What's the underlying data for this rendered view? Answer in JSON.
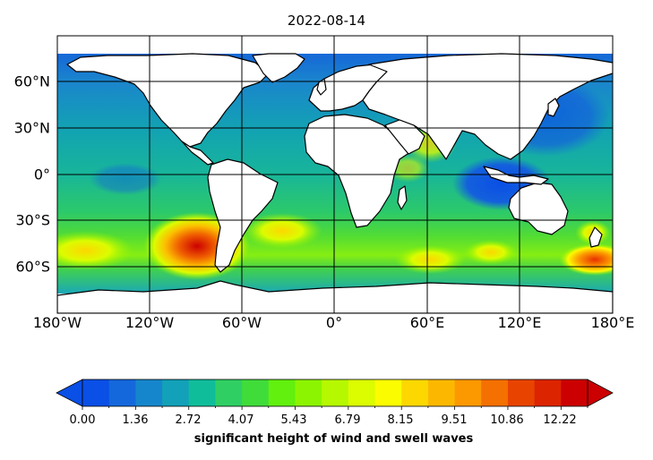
{
  "title": "2022-08-14",
  "map": {
    "lon_labels": [
      "180°W",
      "120°W",
      "60°W",
      "0°",
      "60°E",
      "120°E",
      "180°E"
    ],
    "lat_labels": [
      "60°N",
      "30°N",
      "0°",
      "30°S",
      "60°S"
    ],
    "colors": {
      "land": "#ffffff",
      "coast": "#000000",
      "grid": "#000000"
    }
  },
  "colorbar": {
    "label": "significant height of wind and swell waves",
    "tick_labels": [
      "0.00",
      "1.36",
      "2.72",
      "4.07",
      "5.43",
      "6.79",
      "8.15",
      "9.51",
      "10.86",
      "12.22"
    ],
    "colors": [
      "#0a4fe6",
      "#1468dc",
      "#1686cc",
      "#12a1b8",
      "#10bd9a",
      "#30cf64",
      "#40dc3a",
      "#62f00e",
      "#8cf400",
      "#b6f800",
      "#dcfc00",
      "#fcfc00",
      "#fcd800",
      "#fcb800",
      "#fc9800",
      "#f47000",
      "#e84400",
      "#dc2400",
      "#cc0000"
    ],
    "under_color": "#0a4fe6",
    "over_color": "#cc0000"
  }
}
